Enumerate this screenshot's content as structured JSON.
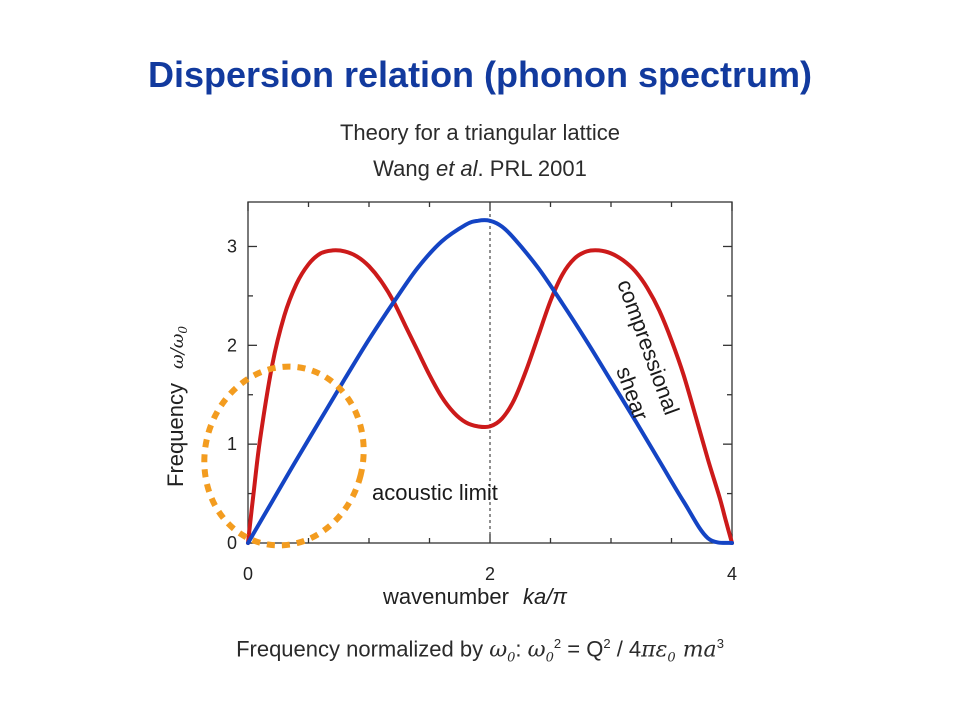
{
  "slide": {
    "title": "Dispersion relation (phonon spectrum)",
    "subtitle_line1": "Theory for a triangular lattice",
    "subtitle_line2_pre": "Wang ",
    "subtitle_line2_italic": "et al",
    "subtitle_line2_post": ". PRL 2001",
    "footer": {
      "text": "Frequency normalized by ",
      "omega0": "ω",
      "zero": "0",
      "colon": ":",
      "eq_lhs_omega": "ω",
      "eq_lhs_sub": "0",
      "eq_lhs_sup": "2",
      "equals": " = ",
      "Q": "Q",
      "Q_sup": "2",
      "slash": " / 4",
      "pi_eps": "πε",
      "eps_sub": "0",
      "ma": " ma",
      "ma_sup": "3"
    }
  },
  "chart_data": {
    "type": "line",
    "xlabel": "wavenumber",
    "xlabel_var": "ka/π",
    "ylabel": "Frequency",
    "ylabel_var": "ω/ω",
    "ylabel_var_sub": "0",
    "xlim": [
      0,
      4
    ],
    "ylim": [
      0,
      3.45
    ],
    "xticks": [
      0,
      2,
      4
    ],
    "yticks": [
      0,
      1,
      2,
      3
    ],
    "x_minor_step": 0.5,
    "y_minor_step": 0.5,
    "vline_x": 2,
    "series": [
      {
        "name": "compressional",
        "color": "#cc1a1a",
        "x": [
          0,
          0.05,
          0.1,
          0.2,
          0.3,
          0.4,
          0.5,
          0.6,
          0.7,
          0.8,
          0.9,
          1.0,
          1.1,
          1.2,
          1.3,
          1.4,
          1.5,
          1.6,
          1.7,
          1.8,
          1.9,
          2.0,
          2.1,
          2.2,
          2.3,
          2.4,
          2.5,
          2.6,
          2.7,
          2.8,
          2.9,
          3.0,
          3.1,
          3.2,
          3.3,
          3.4,
          3.5,
          3.6,
          3.7,
          3.8,
          3.9,
          3.95,
          4.0
        ],
        "y": [
          0,
          0.55,
          1.05,
          1.8,
          2.3,
          2.62,
          2.82,
          2.93,
          2.96,
          2.95,
          2.9,
          2.8,
          2.65,
          2.45,
          2.2,
          1.95,
          1.7,
          1.48,
          1.32,
          1.22,
          1.18,
          1.18,
          1.26,
          1.45,
          1.75,
          2.1,
          2.45,
          2.72,
          2.88,
          2.95,
          2.96,
          2.93,
          2.86,
          2.75,
          2.58,
          2.35,
          2.05,
          1.7,
          1.28,
          0.85,
          0.45,
          0.22,
          0
        ]
      },
      {
        "name": "shear",
        "color": "#1444c4",
        "x": [
          0,
          0.2,
          0.4,
          0.6,
          0.8,
          1.0,
          1.2,
          1.4,
          1.6,
          1.8,
          1.9,
          2.0,
          2.1,
          2.2,
          2.4,
          2.6,
          2.8,
          3.0,
          3.2,
          3.4,
          3.6,
          3.8,
          4.0
        ],
        "y": [
          0,
          0.42,
          0.84,
          1.25,
          1.66,
          2.06,
          2.43,
          2.78,
          3.05,
          3.22,
          3.26,
          3.26,
          3.2,
          3.08,
          2.78,
          2.42,
          2.04,
          1.64,
          1.24,
          0.83,
          0.42,
          0.05,
          0
        ]
      }
    ],
    "annotations": [
      {
        "text": "compressional",
        "color": "#1a1a1a"
      },
      {
        "text": "shear",
        "color": "#1a1a1a"
      },
      {
        "text": "acoustic limit",
        "color": "#1a1a1a"
      }
    ],
    "highlight_color": "#f39c1f"
  }
}
